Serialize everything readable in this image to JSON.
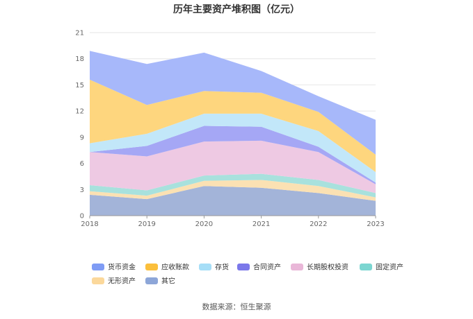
{
  "chart_data": {
    "type": "area",
    "stacked": true,
    "title": "历年主要资产堆积图（亿元）",
    "xlabel": "",
    "ylabel": "",
    "categories": [
      "2018",
      "2019",
      "2020",
      "2021",
      "2022",
      "2023"
    ],
    "ylim": [
      0,
      21
    ],
    "yticks": [
      0,
      3,
      6,
      9,
      12,
      15,
      18,
      21
    ],
    "grid": true,
    "legend_position": "bottom",
    "series": [
      {
        "name": "其它",
        "color": "#A3B4D9",
        "values": [
          2.4,
          1.9,
          3.4,
          3.2,
          2.6,
          1.7
        ]
      },
      {
        "name": "无形资产",
        "color": "#FBE1B3",
        "values": [
          0.4,
          0.4,
          0.6,
          0.9,
          0.8,
          0.4
        ]
      },
      {
        "name": "固定资产",
        "color": "#A8E1DD",
        "values": [
          0.7,
          0.6,
          0.6,
          0.7,
          0.7,
          0.5
        ]
      },
      {
        "name": "长期股权投资",
        "color": "#EEC9E3",
        "values": [
          3.8,
          3.9,
          3.9,
          3.8,
          3.2,
          1.0
        ]
      },
      {
        "name": "合同资产",
        "color": "#A5A7F5",
        "values": [
          0.0,
          1.2,
          1.8,
          1.6,
          0.6,
          0.2
        ]
      },
      {
        "name": "存货",
        "color": "#C2E7F9",
        "values": [
          1.0,
          1.4,
          1.4,
          1.5,
          1.8,
          1.2
        ]
      },
      {
        "name": "应收账款",
        "color": "#FED67E",
        "values": [
          7.3,
          3.3,
          2.6,
          2.4,
          2.2,
          2.0
        ]
      },
      {
        "name": "货币资金",
        "color": "#A7B8FA",
        "values": [
          3.3,
          4.7,
          4.4,
          2.5,
          1.8,
          4.0
        ]
      }
    ],
    "legend_order": [
      "货币资金",
      "应收账款",
      "存货",
      "合同资产",
      "长期股权投资",
      "固定资产",
      "无形资产",
      "其它"
    ],
    "legend_colors": {
      "货币资金": "#7F9CF5",
      "应收账款": "#FBBF3C",
      "存货": "#A6DEF7",
      "合同资产": "#7B78EA",
      "长期股权投资": "#E9B7D8",
      "固定资产": "#7CD6D1",
      "无形资产": "#FBD89B",
      "其它": "#8DA6D8"
    }
  },
  "source": "数据来源：恒生聚源"
}
